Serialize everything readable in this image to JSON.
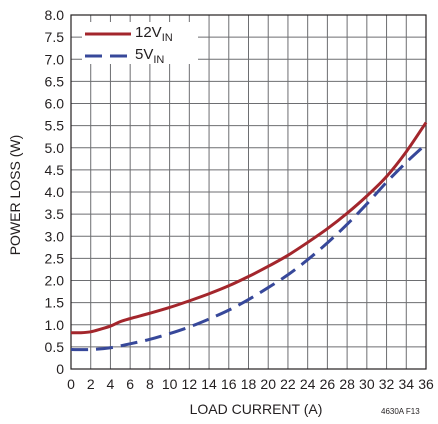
{
  "chart_data": {
    "type": "line",
    "title": "",
    "xlabel": "LOAD CURRENT (A)",
    "ylabel": "POWER LOSS (W)",
    "xlim": [
      0,
      36
    ],
    "ylim": [
      0,
      8.0
    ],
    "x_ticks": [
      0,
      2,
      4,
      6,
      8,
      10,
      12,
      14,
      16,
      18,
      20,
      22,
      24,
      26,
      28,
      30,
      32,
      34,
      36
    ],
    "x_tick_labels": [
      "0",
      "2",
      "4",
      "6",
      "8",
      "10",
      "12",
      "14",
      "16",
      "18",
      "20",
      "22",
      "24",
      "26",
      "28",
      "30",
      "32",
      "34",
      "36"
    ],
    "y_ticks": [
      0,
      0.5,
      1.0,
      1.5,
      2.0,
      2.5,
      3.0,
      3.5,
      4.0,
      4.5,
      5.0,
      5.5,
      6.0,
      6.5,
      7.0,
      7.5,
      8.0
    ],
    "y_tick_labels": [
      "0",
      "0.5",
      "1.0",
      "1.5",
      "2.0",
      "2.5",
      "3.0",
      "3.5",
      "4.0",
      "4.5",
      "5.0",
      "5.5",
      "6.0",
      "6.5",
      "7.0",
      "7.5",
      "8.0"
    ],
    "grid": true,
    "legend_position": "top-left",
    "series": [
      {
        "name": "12V",
        "name_subscript": "IN",
        "color": "#a3262c",
        "style": "solid",
        "points": [
          [
            0,
            0.82
          ],
          [
            1,
            0.82
          ],
          [
            2,
            0.84
          ],
          [
            3,
            0.9
          ],
          [
            4,
            0.97
          ],
          [
            5,
            1.07
          ],
          [
            6,
            1.14
          ],
          [
            8,
            1.26
          ],
          [
            10,
            1.39
          ],
          [
            12,
            1.54
          ],
          [
            14,
            1.7
          ],
          [
            16,
            1.88
          ],
          [
            18,
            2.09
          ],
          [
            20,
            2.32
          ],
          [
            22,
            2.57
          ],
          [
            24,
            2.86
          ],
          [
            26,
            3.17
          ],
          [
            28,
            3.52
          ],
          [
            30,
            3.91
          ],
          [
            32,
            4.35
          ],
          [
            34,
            4.91
          ],
          [
            36,
            5.57
          ]
        ]
      },
      {
        "name": "5V",
        "name_subscript": "IN",
        "color": "#37489a",
        "style": "dashed",
        "points": [
          [
            0,
            0.44
          ],
          [
            2,
            0.44
          ],
          [
            4,
            0.48
          ],
          [
            6,
            0.57
          ],
          [
            8,
            0.67
          ],
          [
            10,
            0.8
          ],
          [
            12,
            0.95
          ],
          [
            14,
            1.13
          ],
          [
            16,
            1.33
          ],
          [
            18,
            1.57
          ],
          [
            20,
            1.84
          ],
          [
            22,
            2.13
          ],
          [
            24,
            2.47
          ],
          [
            26,
            2.85
          ],
          [
            28,
            3.27
          ],
          [
            30,
            3.73
          ],
          [
            32,
            4.22
          ],
          [
            34,
            4.67
          ],
          [
            36,
            5.08
          ]
        ]
      }
    ],
    "figure_id": "4630A F13"
  }
}
